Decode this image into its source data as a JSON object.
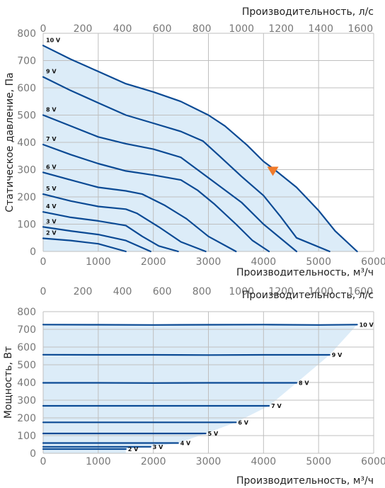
{
  "colors": {
    "curve": "#0b4a94",
    "fill": "#dcecf8",
    "grid": "#bfbfbf",
    "tick": "#777777",
    "marker": "#f07a2a"
  },
  "chart_data": [
    {
      "type": "line",
      "id": "pressure",
      "xlabel": "Производительность, м³/ч",
      "x2label": "Производительность, л/с",
      "ylabel": "Статическое давление, Па",
      "xlim": [
        0,
        6000
      ],
      "x2lim": [
        0,
        1666.67
      ],
      "ylim": [
        0,
        800
      ],
      "xticks": [
        0,
        1000,
        2000,
        3000,
        4000,
        5000,
        6000
      ],
      "x2ticks": [
        0,
        200,
        400,
        600,
        800,
        1000,
        1200,
        1400,
        1600
      ],
      "yticks": [
        0,
        100,
        200,
        300,
        400,
        500,
        600,
        700,
        800
      ],
      "grid": true,
      "filled_envelope": true,
      "series": [
        {
          "name": "10 V",
          "points": [
            [
              0,
              755
            ],
            [
              500,
              705
            ],
            [
              1000,
              660
            ],
            [
              1500,
              615
            ],
            [
              2000,
              585
            ],
            [
              2500,
              550
            ],
            [
              3000,
              500
            ],
            [
              3300,
              460
            ],
            [
              3700,
              390
            ],
            [
              4000,
              330
            ],
            [
              4200,
              300
            ],
            [
              4600,
              235
            ],
            [
              5000,
              150
            ],
            [
              5300,
              75
            ],
            [
              5700,
              0
            ]
          ]
        },
        {
          "name": "9 V",
          "points": [
            [
              0,
              640
            ],
            [
              500,
              590
            ],
            [
              1000,
              545
            ],
            [
              1500,
              500
            ],
            [
              2000,
              470
            ],
            [
              2500,
              440
            ],
            [
              2900,
              405
            ],
            [
              3200,
              350
            ],
            [
              3600,
              275
            ],
            [
              4000,
              205
            ],
            [
              4300,
              130
            ],
            [
              4600,
              50
            ],
            [
              5200,
              0
            ]
          ]
        },
        {
          "name": "8 V",
          "points": [
            [
              0,
              500
            ],
            [
              500,
              460
            ],
            [
              1000,
              420
            ],
            [
              1500,
              395
            ],
            [
              2000,
              375
            ],
            [
              2500,
              345
            ],
            [
              2800,
              300
            ],
            [
              3200,
              240
            ],
            [
              3600,
              180
            ],
            [
              4000,
              100
            ],
            [
              4600,
              0
            ]
          ]
        },
        {
          "name": "7 V",
          "points": [
            [
              0,
              392
            ],
            [
              500,
              355
            ],
            [
              1000,
              322
            ],
            [
              1500,
              295
            ],
            [
              2000,
              280
            ],
            [
              2500,
              262
            ],
            [
              2800,
              225
            ],
            [
              3100,
              175
            ],
            [
              3500,
              100
            ],
            [
              3800,
              40
            ],
            [
              4100,
              0
            ]
          ]
        },
        {
          "name": "6 V",
          "points": [
            [
              0,
              290
            ],
            [
              500,
              262
            ],
            [
              1000,
              235
            ],
            [
              1500,
              222
            ],
            [
              1800,
              210
            ],
            [
              2200,
              170
            ],
            [
              2600,
              120
            ],
            [
              3000,
              55
            ],
            [
              3500,
              0
            ]
          ]
        },
        {
          "name": "5 V",
          "points": [
            [
              0,
              210
            ],
            [
              500,
              185
            ],
            [
              1000,
              165
            ],
            [
              1500,
              155
            ],
            [
              1700,
              140
            ],
            [
              2100,
              90
            ],
            [
              2500,
              35
            ],
            [
              2950,
              0
            ]
          ]
        },
        {
          "name": "4 V",
          "points": [
            [
              0,
              145
            ],
            [
              500,
              125
            ],
            [
              1000,
              112
            ],
            [
              1500,
              95
            ],
            [
              1800,
              55
            ],
            [
              2100,
              20
            ],
            [
              2450,
              0
            ]
          ]
        },
        {
          "name": "3 V",
          "points": [
            [
              0,
              90
            ],
            [
              500,
              75
            ],
            [
              1000,
              62
            ],
            [
              1500,
              40
            ],
            [
              1950,
              0
            ]
          ]
        },
        {
          "name": "2 V",
          "points": [
            [
              0,
              48
            ],
            [
              500,
              40
            ],
            [
              1000,
              28
            ],
            [
              1500,
              0
            ]
          ]
        }
      ],
      "marker": {
        "x": 4170,
        "y": 295
      }
    },
    {
      "type": "line",
      "id": "power",
      "xlabel": "Производительность, м³/ч",
      "x2label": "Производительность, л/с",
      "ylabel": "Мощность, Вт",
      "xlim": [
        0,
        6000
      ],
      "x2lim": [
        0,
        1666.67
      ],
      "ylim": [
        0,
        800
      ],
      "xticks": [
        0,
        1000,
        2000,
        3000,
        4000,
        5000,
        6000
      ],
      "x2ticks": [
        0,
        200,
        400,
        600,
        800,
        1000,
        1200,
        1400,
        1600
      ],
      "yticks": [
        0,
        100,
        200,
        300,
        400,
        500,
        600,
        700,
        800
      ],
      "grid": true,
      "filled_envelope": true,
      "series": [
        {
          "name": "10 V",
          "points": [
            [
              0,
              727
            ],
            [
              1000,
              726
            ],
            [
              2000,
              725
            ],
            [
              3000,
              726
            ],
            [
              4000,
              727
            ],
            [
              5000,
              725
            ],
            [
              5700,
              727
            ]
          ]
        },
        {
          "name": "9 V",
          "points": [
            [
              0,
              557
            ],
            [
              1000,
              556
            ],
            [
              2000,
              556
            ],
            [
              3000,
              555
            ],
            [
              4000,
              556
            ],
            [
              5200,
              556
            ]
          ]
        },
        {
          "name": "8 V",
          "points": [
            [
              0,
              398
            ],
            [
              1000,
              398
            ],
            [
              2000,
              397
            ],
            [
              3000,
              398
            ],
            [
              4000,
              398
            ],
            [
              4600,
              398
            ]
          ]
        },
        {
          "name": "7 V",
          "points": [
            [
              0,
              268
            ],
            [
              1000,
              268
            ],
            [
              2000,
              268
            ],
            [
              3000,
              268
            ],
            [
              4100,
              268
            ]
          ]
        },
        {
          "name": "6 V",
          "points": [
            [
              0,
              175
            ],
            [
              1000,
              175
            ],
            [
              2000,
              175
            ],
            [
              3000,
              175
            ],
            [
              3500,
              175
            ]
          ]
        },
        {
          "name": "5 V",
          "points": [
            [
              0,
              112
            ],
            [
              1000,
              112
            ],
            [
              2000,
              112
            ],
            [
              2950,
              112
            ]
          ]
        },
        {
          "name": "4 V",
          "points": [
            [
              0,
              58
            ],
            [
              1000,
              58
            ],
            [
              2000,
              58
            ],
            [
              2450,
              58
            ]
          ]
        },
        {
          "name": "3 V",
          "points": [
            [
              0,
              37
            ],
            [
              1000,
              37
            ],
            [
              1950,
              37
            ]
          ]
        },
        {
          "name": "2 V",
          "points": [
            [
              0,
              24
            ],
            [
              1000,
              24
            ],
            [
              1500,
              24
            ]
          ]
        }
      ]
    }
  ]
}
